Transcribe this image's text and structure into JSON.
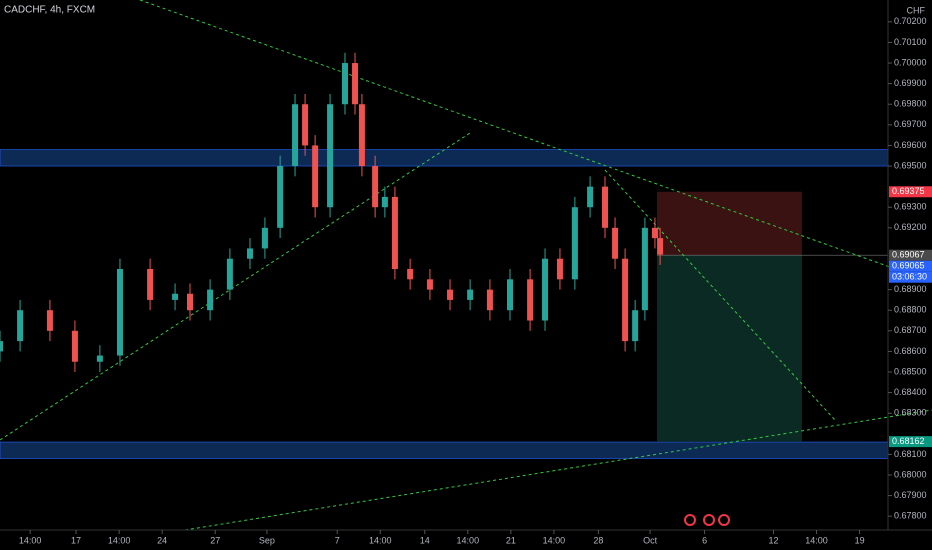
{
  "chart_data": {
    "type": "candlestick",
    "title": "CADCHF, 4h, FXCM",
    "unit": "CHF",
    "up_color": "#26a69a",
    "down_color": "#ef5350",
    "x": [
      0,
      7,
      17.4,
      26.1,
      34.8,
      41.8,
      52.3,
      61,
      66.2,
      73.2,
      80.1,
      87.1,
      92.3,
      97.6,
      102.8,
      106.3,
      109.8,
      115,
      120.2,
      123.7,
      126.1,
      130.7,
      134.1,
      137.6,
      142.9,
      149.8,
      156.8,
      163.8,
      170.7,
      177.7,
      184.7,
      189.9,
      195.1,
      200.3,
      205.6,
      210.8,
      214.3,
      217.8,
      221.3,
      224.7,
      228.2,
      230
    ],
    "open": [
      0.686,
      0.6865,
      0.688,
      0.687,
      0.6855,
      0.6858,
      0.69,
      0.6885,
      0.6888,
      0.688,
      0.689,
      0.6905,
      0.691,
      0.692,
      0.695,
      0.698,
      0.696,
      0.693,
      0.698,
      0.7,
      0.698,
      0.695,
      0.693,
      0.6935,
      0.69,
      0.6895,
      0.689,
      0.6885,
      0.689,
      0.688,
      0.6895,
      0.6875,
      0.6905,
      0.6895,
      0.693,
      0.694,
      0.692,
      0.6905,
      0.6865,
      0.688,
      0.692,
      0.6915
    ],
    "high": [
      0.687,
      0.6885,
      0.6885,
      0.6875,
      0.6863,
      0.6905,
      0.6905,
      0.6893,
      0.6893,
      0.6895,
      0.691,
      0.6915,
      0.6925,
      0.6955,
      0.6985,
      0.6985,
      0.6965,
      0.6985,
      0.7005,
      0.7005,
      0.6985,
      0.6955,
      0.694,
      0.694,
      0.6905,
      0.69,
      0.6895,
      0.6895,
      0.6895,
      0.69,
      0.69,
      0.691,
      0.691,
      0.6935,
      0.6945,
      0.6945,
      0.6925,
      0.691,
      0.6885,
      0.6925,
      0.6925,
      0.692
    ],
    "low": [
      0.6855,
      0.686,
      0.6865,
      0.685,
      0.685,
      0.6853,
      0.688,
      0.688,
      0.6875,
      0.6875,
      0.6885,
      0.69,
      0.6905,
      0.6915,
      0.6945,
      0.6955,
      0.6925,
      0.6925,
      0.6975,
      0.6975,
      0.6945,
      0.6925,
      0.6925,
      0.6895,
      0.689,
      0.6885,
      0.688,
      0.688,
      0.6875,
      0.6875,
      0.687,
      0.687,
      0.689,
      0.689,
      0.6925,
      0.6915,
      0.69,
      0.686,
      0.686,
      0.6875,
      0.691,
      0.6902
    ],
    "close": [
      0.6865,
      0.688,
      0.687,
      0.6855,
      0.6858,
      0.69,
      0.6885,
      0.6888,
      0.688,
      0.689,
      0.6905,
      0.691,
      0.692,
      0.695,
      0.698,
      0.696,
      0.693,
      0.698,
      0.7,
      0.698,
      0.695,
      0.693,
      0.6935,
      0.69,
      0.6895,
      0.689,
      0.6885,
      0.689,
      0.688,
      0.6895,
      0.6875,
      0.6905,
      0.6895,
      0.693,
      0.694,
      0.692,
      0.6905,
      0.6865,
      0.688,
      0.692,
      0.6915,
      0.6907
    ],
    "xlim": [
      0,
      309.4
    ],
    "ylim": [
      0.67733,
      0.70306
    ],
    "xticks": [
      {
        "value": 10.5,
        "label": "14:00"
      },
      {
        "value": 26.5,
        "label": "17"
      },
      {
        "value": 41.5,
        "label": "14:00"
      },
      {
        "value": 56.5,
        "label": "24"
      },
      {
        "value": 75,
        "label": "27"
      },
      {
        "value": 93,
        "label": "Sep"
      },
      {
        "value": 117.5,
        "label": "7"
      },
      {
        "value": 132.5,
        "label": "14:00"
      },
      {
        "value": 148,
        "label": "14"
      },
      {
        "value": 163,
        "label": "14:00"
      },
      {
        "value": 178,
        "label": "21"
      },
      {
        "value": 193,
        "label": "14:00"
      },
      {
        "value": 208.5,
        "label": "28"
      },
      {
        "value": 226.5,
        "label": "Oct"
      },
      {
        "value": 245.5,
        "label": "6"
      },
      {
        "value": 269.5,
        "label": "12"
      },
      {
        "value": 284.5,
        "label": "14:00"
      },
      {
        "value": 299.5,
        "label": "19"
      }
    ],
    "yticks": [
      {
        "value": 0.678,
        "label": "0.67800"
      },
      {
        "value": 0.679,
        "label": "0.67900"
      },
      {
        "value": 0.68,
        "label": "0.68000"
      },
      {
        "value": 0.681,
        "label": "0.68100"
      },
      {
        "value": 0.683,
        "label": "0.68300"
      },
      {
        "value": 0.684,
        "label": "0.68400"
      },
      {
        "value": 0.685,
        "label": "0.68500"
      },
      {
        "value": 0.686,
        "label": "0.68600"
      },
      {
        "value": 0.687,
        "label": "0.68700"
      },
      {
        "value": 0.688,
        "label": "0.68800"
      },
      {
        "value": 0.689,
        "label": "0.68900"
      },
      {
        "value": 0.692,
        "label": "0.69200"
      },
      {
        "value": 0.693,
        "label": "0.69300"
      },
      {
        "value": 0.695,
        "label": "0.69500"
      },
      {
        "value": 0.696,
        "label": "0.69600"
      },
      {
        "value": 0.697,
        "label": "0.69700"
      },
      {
        "value": 0.698,
        "label": "0.69800"
      },
      {
        "value": 0.699,
        "label": "0.69900"
      },
      {
        "value": 0.7,
        "label": "0.70000"
      },
      {
        "value": 0.701,
        "label": "0.70100"
      },
      {
        "value": 0.702,
        "label": "0.70200"
      }
    ],
    "zones": [
      [
        0.695,
        0.6958
      ],
      [
        0.6808,
        0.6816
      ]
    ],
    "position": {
      "x": [
        228.9,
        279.4
      ],
      "stop": 0.69375,
      "entry": 0.69067,
      "target": 0.68162
    },
    "price_tags": [
      {
        "value": 0.69375,
        "color": "#f23645"
      },
      {
        "value": 0.69067,
        "color": "#4a4a4a"
      },
      {
        "value": 0.69065,
        "color": "#2962ff"
      },
      {
        "value": 0.68162,
        "color": "#089981"
      }
    ],
    "countdown": "03:06:30"
  }
}
